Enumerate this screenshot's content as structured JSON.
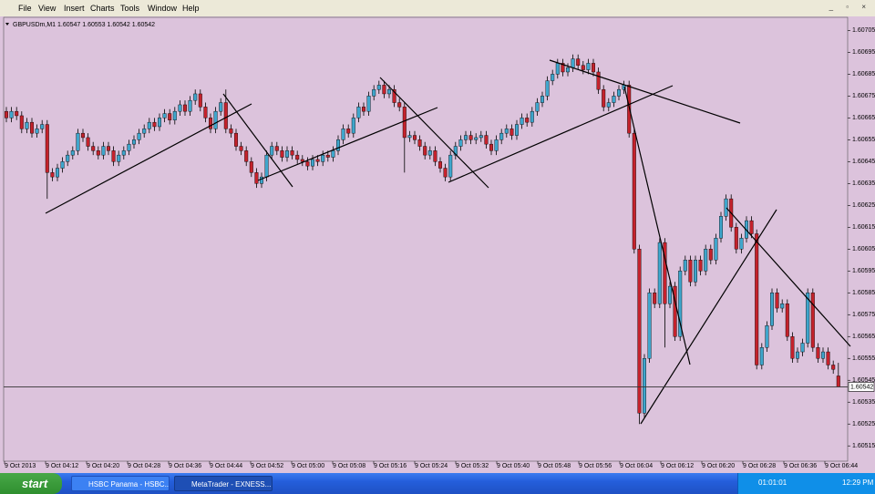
{
  "menu": [
    "File",
    "View",
    "Insert",
    "Charts",
    "Tools",
    "Window",
    "Help"
  ],
  "chart_data": {
    "type": "candlestick",
    "title": "GBPUSDm,M1 1.60547 1.60553 1.60542 1.60542",
    "up_color": "#3fa6cc",
    "down_color": "#c4222c",
    "ylim": [
      1.60508,
      1.60711
    ],
    "yticks": [
      1.60705,
      1.60695,
      1.60685,
      1.60675,
      1.60665,
      1.60655,
      1.60645,
      1.60635,
      1.60625,
      1.60615,
      1.60605,
      1.60595,
      1.60585,
      1.60575,
      1.60565,
      1.60555,
      1.60545,
      1.60535,
      1.60525,
      1.60515
    ],
    "current_price": 1.60542,
    "xlabels": [
      "9 Oct 2013",
      "9 Oct 04:12",
      "9 Oct 04:20",
      "9 Oct 04:28",
      "9 Oct 04:36",
      "9 Oct 04:44",
      "9 Oct 04:52",
      "9 Oct 05:00",
      "9 Oct 05:08",
      "9 Oct 05:16",
      "9 Oct 05:24",
      "9 Oct 05:32",
      "9 Oct 05:40",
      "9 Oct 05:48",
      "9 Oct 05:56",
      "9 Oct 06:04",
      "9 Oct 06:12",
      "9 Oct 06:20",
      "9 Oct 06:28",
      "9 Oct 06:36",
      "9 Oct 06:44"
    ],
    "ohlc": [
      [
        1.60668,
        1.6067,
        1.60663,
        1.60665
      ],
      [
        1.60665,
        1.6067,
        1.60663,
        1.60668
      ],
      [
        1.60668,
        1.6067,
        1.60664,
        1.60666
      ],
      [
        1.60666,
        1.60668,
        1.60658,
        1.6066
      ],
      [
        1.6066,
        1.60665,
        1.60658,
        1.60663
      ],
      [
        1.60663,
        1.60665,
        1.60656,
        1.60658
      ],
      [
        1.60658,
        1.60662,
        1.60656,
        1.6066
      ],
      [
        1.6066,
        1.60664,
        1.60658,
        1.60662
      ],
      [
        1.60662,
        1.60664,
        1.60628,
        1.6064
      ],
      [
        1.6064,
        1.60642,
        1.60636,
        1.60638
      ],
      [
        1.60638,
        1.60644,
        1.60636,
        1.60642
      ],
      [
        1.60642,
        1.60647,
        1.6064,
        1.60645
      ],
      [
        1.60645,
        1.6065,
        1.60643,
        1.60648
      ],
      [
        1.60648,
        1.60652,
        1.60646,
        1.6065
      ],
      [
        1.6065,
        1.6066,
        1.60648,
        1.60658
      ],
      [
        1.60658,
        1.6066,
        1.60654,
        1.60656
      ],
      [
        1.60656,
        1.60658,
        1.6065,
        1.60652
      ],
      [
        1.60652,
        1.60654,
        1.60648,
        1.6065
      ],
      [
        1.6065,
        1.60652,
        1.60646,
        1.60648
      ],
      [
        1.60648,
        1.60654,
        1.60646,
        1.60652
      ],
      [
        1.60652,
        1.60654,
        1.60648,
        1.6065
      ],
      [
        1.6065,
        1.60652,
        1.60643,
        1.60645
      ],
      [
        1.60645,
        1.6065,
        1.60643,
        1.60648
      ],
      [
        1.60648,
        1.60652,
        1.60646,
        1.6065
      ],
      [
        1.6065,
        1.60655,
        1.60648,
        1.60653
      ],
      [
        1.60653,
        1.60657,
        1.60651,
        1.60655
      ],
      [
        1.60655,
        1.6066,
        1.60653,
        1.60658
      ],
      [
        1.60658,
        1.60662,
        1.60656,
        1.6066
      ],
      [
        1.6066,
        1.60665,
        1.60658,
        1.60663
      ],
      [
        1.60663,
        1.60665,
        1.60659,
        1.60661
      ],
      [
        1.60661,
        1.60667,
        1.60659,
        1.60665
      ],
      [
        1.60665,
        1.60669,
        1.60663,
        1.60667
      ],
      [
        1.60667,
        1.60669,
        1.60662,
        1.60664
      ],
      [
        1.60664,
        1.6067,
        1.60662,
        1.60668
      ],
      [
        1.60668,
        1.60673,
        1.60666,
        1.60671
      ],
      [
        1.60671,
        1.60673,
        1.60666,
        1.60668
      ],
      [
        1.60668,
        1.60675,
        1.60666,
        1.60673
      ],
      [
        1.60673,
        1.60678,
        1.60671,
        1.60676
      ],
      [
        1.60676,
        1.60678,
        1.60668,
        1.6067
      ],
      [
        1.6067,
        1.60672,
        1.60663,
        1.60665
      ],
      [
        1.60665,
        1.60667,
        1.60658,
        1.6066
      ],
      [
        1.6066,
        1.6067,
        1.60658,
        1.60668
      ],
      [
        1.60668,
        1.60674,
        1.60666,
        1.60672
      ],
      [
        1.60672,
        1.60678,
        1.60658,
        1.6066
      ],
      [
        1.6066,
        1.60662,
        1.60656,
        1.60658
      ],
      [
        1.60658,
        1.6066,
        1.6065,
        1.60652
      ],
      [
        1.60652,
        1.60654,
        1.60648,
        1.6065
      ],
      [
        1.6065,
        1.60652,
        1.60643,
        1.60645
      ],
      [
        1.60645,
        1.60647,
        1.60638,
        1.6064
      ],
      [
        1.6064,
        1.60642,
        1.60633,
        1.60635
      ],
      [
        1.60635,
        1.6064,
        1.60633,
        1.60638
      ],
      [
        1.60638,
        1.6065,
        1.60636,
        1.60648
      ],
      [
        1.60648,
        1.60654,
        1.60646,
        1.60652
      ],
      [
        1.60652,
        1.60654,
        1.60648,
        1.6065
      ],
      [
        1.6065,
        1.60652,
        1.60645,
        1.60647
      ],
      [
        1.60647,
        1.60652,
        1.60645,
        1.6065
      ],
      [
        1.6065,
        1.60652,
        1.60646,
        1.60648
      ],
      [
        1.60648,
        1.6065,
        1.60644,
        1.60646
      ],
      [
        1.60646,
        1.60648,
        1.60643,
        1.60645
      ],
      [
        1.60645,
        1.60647,
        1.60641,
        1.60643
      ],
      [
        1.60643,
        1.60648,
        1.60641,
        1.60646
      ],
      [
        1.60646,
        1.60648,
        1.60643,
        1.60645
      ],
      [
        1.60645,
        1.6065,
        1.60643,
        1.60648
      ],
      [
        1.60648,
        1.6065,
        1.60645,
        1.60647
      ],
      [
        1.60647,
        1.60652,
        1.60645,
        1.6065
      ],
      [
        1.6065,
        1.60657,
        1.60648,
        1.60655
      ],
      [
        1.60655,
        1.60662,
        1.60653,
        1.6066
      ],
      [
        1.6066,
        1.60662,
        1.60656,
        1.60658
      ],
      [
        1.60658,
        1.60667,
        1.60656,
        1.60665
      ],
      [
        1.60665,
        1.60672,
        1.60663,
        1.6067
      ],
      [
        1.6067,
        1.60672,
        1.60666,
        1.60668
      ],
      [
        1.60668,
        1.60677,
        1.60666,
        1.60675
      ],
      [
        1.60675,
        1.6068,
        1.60673,
        1.60678
      ],
      [
        1.60678,
        1.60682,
        1.60676,
        1.6068
      ],
      [
        1.6068,
        1.60682,
        1.60674,
        1.60676
      ],
      [
        1.60676,
        1.6068,
        1.60674,
        1.60678
      ],
      [
        1.60678,
        1.6068,
        1.6067,
        1.60672
      ],
      [
        1.60672,
        1.60674,
        1.60668,
        1.6067
      ],
      [
        1.6067,
        1.60672,
        1.6064,
        1.60656
      ],
      [
        1.60656,
        1.60659,
        1.60654,
        1.60657
      ],
      [
        1.60657,
        1.60659,
        1.60653,
        1.60655
      ],
      [
        1.60655,
        1.60657,
        1.6065,
        1.60652
      ],
      [
        1.60652,
        1.60654,
        1.60646,
        1.60648
      ],
      [
        1.60648,
        1.60652,
        1.60646,
        1.6065
      ],
      [
        1.6065,
        1.60652,
        1.60643,
        1.60645
      ],
      [
        1.60645,
        1.60647,
        1.6064,
        1.60642
      ],
      [
        1.60642,
        1.60644,
        1.60636,
        1.60638
      ],
      [
        1.60638,
        1.6065,
        1.60636,
        1.60648
      ],
      [
        1.60648,
        1.60654,
        1.60646,
        1.60652
      ],
      [
        1.60652,
        1.60657,
        1.6065,
        1.60655
      ],
      [
        1.60655,
        1.60659,
        1.60653,
        1.60657
      ],
      [
        1.60657,
        1.60659,
        1.60653,
        1.60655
      ],
      [
        1.60655,
        1.60658,
        1.60653,
        1.60656
      ],
      [
        1.60656,
        1.60659,
        1.60654,
        1.60657
      ],
      [
        1.60657,
        1.60659,
        1.60651,
        1.60653
      ],
      [
        1.60653,
        1.60655,
        1.60648,
        1.6065
      ],
      [
        1.6065,
        1.60657,
        1.60648,
        1.60655
      ],
      [
        1.60655,
        1.6066,
        1.60653,
        1.60658
      ],
      [
        1.60658,
        1.60662,
        1.60656,
        1.6066
      ],
      [
        1.6066,
        1.60662,
        1.60655,
        1.60657
      ],
      [
        1.60657,
        1.60664,
        1.60655,
        1.60662
      ],
      [
        1.60662,
        1.60667,
        1.6066,
        1.60665
      ],
      [
        1.60665,
        1.60667,
        1.60661,
        1.60663
      ],
      [
        1.60663,
        1.6067,
        1.60661,
        1.60668
      ],
      [
        1.60668,
        1.60674,
        1.60666,
        1.60672
      ],
      [
        1.60672,
        1.60677,
        1.6067,
        1.60675
      ],
      [
        1.60675,
        1.60684,
        1.60673,
        1.60682
      ],
      [
        1.60682,
        1.60687,
        1.6068,
        1.60685
      ],
      [
        1.60685,
        1.60692,
        1.60683,
        1.6069
      ],
      [
        1.6069,
        1.60692,
        1.60684,
        1.60686
      ],
      [
        1.60686,
        1.6069,
        1.60684,
        1.60688
      ],
      [
        1.60688,
        1.60694,
        1.60686,
        1.60692
      ],
      [
        1.60692,
        1.60694,
        1.60687,
        1.60689
      ],
      [
        1.60689,
        1.60691,
        1.60685,
        1.60687
      ],
      [
        1.60687,
        1.60692,
        1.60685,
        1.6069
      ],
      [
        1.6069,
        1.60692,
        1.60684,
        1.60686
      ],
      [
        1.60686,
        1.60688,
        1.60676,
        1.60678
      ],
      [
        1.60678,
        1.6068,
        1.60668,
        1.6067
      ],
      [
        1.6067,
        1.60674,
        1.60668,
        1.60672
      ],
      [
        1.60672,
        1.60677,
        1.6067,
        1.60675
      ],
      [
        1.60675,
        1.6068,
        1.60673,
        1.60678
      ],
      [
        1.60678,
        1.60682,
        1.60676,
        1.6068
      ],
      [
        1.6068,
        1.60682,
        1.60656,
        1.60658
      ],
      [
        1.60658,
        1.6066,
        1.60603,
        1.60605
      ],
      [
        1.60605,
        1.60607,
        1.60525,
        1.6053
      ],
      [
        1.6053,
        1.60557,
        1.60528,
        1.60555
      ],
      [
        1.60555,
        1.60587,
        1.60553,
        1.60585
      ],
      [
        1.60585,
        1.60587,
        1.60578,
        1.6058
      ],
      [
        1.6058,
        1.6061,
        1.60578,
        1.60608
      ],
      [
        1.60608,
        1.6061,
        1.6056,
        1.6058
      ],
      [
        1.6058,
        1.6059,
        1.60578,
        1.60588
      ],
      [
        1.60588,
        1.6059,
        1.60563,
        1.60565
      ],
      [
        1.60565,
        1.60597,
        1.60563,
        1.60595
      ],
      [
        1.60595,
        1.60602,
        1.60593,
        1.606
      ],
      [
        1.606,
        1.60602,
        1.60588,
        1.6059
      ],
      [
        1.6059,
        1.60602,
        1.60588,
        1.606
      ],
      [
        1.606,
        1.60602,
        1.60593,
        1.60595
      ],
      [
        1.60595,
        1.60607,
        1.60593,
        1.60605
      ],
      [
        1.60605,
        1.60607,
        1.60598,
        1.606
      ],
      [
        1.606,
        1.60612,
        1.60598,
        1.6061
      ],
      [
        1.6061,
        1.60622,
        1.60608,
        1.6062
      ],
      [
        1.6062,
        1.6063,
        1.60618,
        1.60628
      ],
      [
        1.60628,
        1.6063,
        1.60613,
        1.60615
      ],
      [
        1.60615,
        1.60617,
        1.60603,
        1.60605
      ],
      [
        1.60605,
        1.60612,
        1.60603,
        1.6061
      ],
      [
        1.6061,
        1.6062,
        1.60608,
        1.60618
      ],
      [
        1.60618,
        1.6062,
        1.6061,
        1.60612
      ],
      [
        1.60612,
        1.60614,
        1.6055,
        1.60552
      ],
      [
        1.60552,
        1.60562,
        1.6055,
        1.6056
      ],
      [
        1.6056,
        1.60572,
        1.60558,
        1.6057
      ],
      [
        1.6057,
        1.60587,
        1.60568,
        1.60585
      ],
      [
        1.60585,
        1.60587,
        1.60576,
        1.60578
      ],
      [
        1.60578,
        1.60582,
        1.60576,
        1.6058
      ],
      [
        1.6058,
        1.60582,
        1.60563,
        1.60565
      ],
      [
        1.60565,
        1.60567,
        1.60553,
        1.60555
      ],
      [
        1.60555,
        1.6056,
        1.60553,
        1.60558
      ],
      [
        1.60558,
        1.60564,
        1.60556,
        1.60562
      ],
      [
        1.60562,
        1.60587,
        1.6056,
        1.60585
      ],
      [
        1.60585,
        1.60587,
        1.60558,
        1.6056
      ],
      [
        1.6056,
        1.60562,
        1.60553,
        1.60555
      ],
      [
        1.60555,
        1.6056,
        1.60553,
        1.60558
      ],
      [
        1.60558,
        1.6056,
        1.6055,
        1.60552
      ],
      [
        1.60552,
        1.60554,
        1.60548,
        1.6055
      ],
      [
        1.60547,
        1.60553,
        1.60542,
        1.60542
      ]
    ]
  },
  "taskbar": {
    "start": "start",
    "items": [
      "HSBC Panama - HSBC...",
      "MetaTrader - EXNESS..."
    ],
    "timer": "01:01:01",
    "clock": "12:29 PM"
  }
}
